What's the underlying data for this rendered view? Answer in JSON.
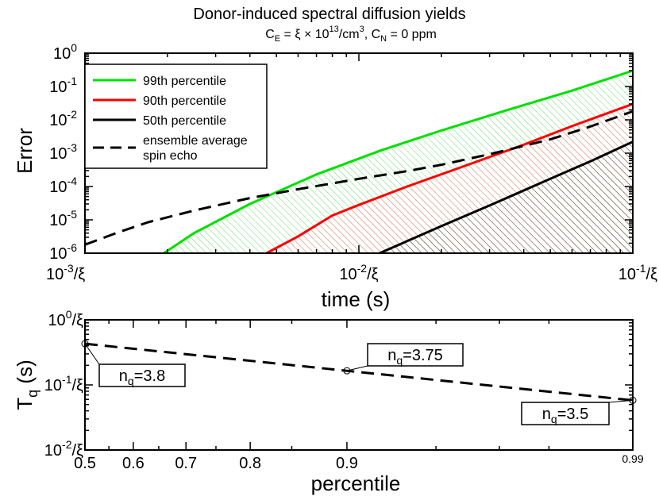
{
  "colors": {
    "p99": "#00e000",
    "p90": "#ff0000",
    "p50": "#000000",
    "ensemble": "#000000",
    "hatch_green": "#66dd66",
    "hatch_red": "#ff7777",
    "hatch_black": "#555555"
  },
  "title": {
    "main": "Donor-induced spectral diffusion yields",
    "sub_ce": "C",
    "sub_e": "E",
    "sub_eq": " = ξ × 10",
    "sub_exp": "13",
    "sub_unit": "/cm",
    "sub_unit_exp": "3",
    "sub_cn": ", C",
    "sub_n": "N",
    "sub_cn_val": " = 0 ppm"
  },
  "chart_data": [
    {
      "id": "error-vs-time",
      "type": "line",
      "title": "Donor-induced spectral diffusion yields",
      "xlabel": "time (s)",
      "ylabel": "Error",
      "xscale": "log",
      "yscale": "log",
      "xlim": [
        0.001,
        0.1
      ],
      "ylim": [
        1e-06,
        1
      ],
      "xticks": [
        {
          "value": 0.001,
          "base": "10",
          "exp": "-3",
          "suffix": "/ξ"
        },
        {
          "value": 0.01,
          "base": "10",
          "exp": "-2",
          "suffix": "/ξ"
        },
        {
          "value": 0.1,
          "base": "10",
          "exp": "-1",
          "suffix": "/ξ"
        }
      ],
      "yticks": [
        {
          "value": 1,
          "base": "10",
          "exp": "0"
        },
        {
          "value": 0.1,
          "base": "10",
          "exp": "-1"
        },
        {
          "value": 0.01,
          "base": "10",
          "exp": "-2"
        },
        {
          "value": 0.001,
          "base": "10",
          "exp": "-3"
        },
        {
          "value": 0.0001,
          "base": "10",
          "exp": "-4"
        },
        {
          "value": 1e-05,
          "base": "10",
          "exp": "-5"
        },
        {
          "value": 1e-06,
          "base": "10",
          "exp": "-6"
        }
      ],
      "legend_position": "top-left",
      "series": [
        {
          "key": "p99",
          "name": "99th percentile",
          "style": "solid",
          "hatch": "hatch_green",
          "x": [
            0.00194,
            0.0025,
            0.004,
            0.007,
            0.012,
            0.02,
            0.035,
            0.06,
            0.1
          ],
          "y": [
            1e-06,
            4e-06,
            3e-05,
            0.00023,
            0.0012,
            0.0048,
            0.02,
            0.075,
            0.3
          ]
        },
        {
          "key": "p90",
          "name": "90th percentile",
          "style": "solid",
          "hatch": "hatch_red",
          "x": [
            0.0046,
            0.006,
            0.008,
            0.01,
            0.015,
            0.025,
            0.04,
            0.06,
            0.1
          ],
          "y": [
            1e-06,
            3.2e-06,
            1.35e-05,
            2.8e-05,
            0.0001,
            0.00045,
            0.0018,
            0.0065,
            0.03
          ]
        },
        {
          "key": "p50",
          "name": "50th percentile",
          "style": "solid",
          "hatch": "hatch_black",
          "x": [
            0.0119,
            0.015,
            0.02,
            0.03,
            0.05,
            0.07,
            0.1
          ],
          "y": [
            1e-06,
            2.3e-06,
            6.5e-06,
            2.7e-05,
            0.00017,
            0.00057,
            0.0022
          ]
        },
        {
          "key": "ensemble",
          "name": "ensemble average",
          "name2": "spin echo",
          "style": "dashed",
          "x": [
            0.001,
            0.0013,
            0.0017,
            0.0025,
            0.004,
            0.006,
            0.01,
            0.015,
            0.02,
            0.03,
            0.05,
            0.07,
            0.1
          ],
          "y": [
            1.8e-06,
            4e-06,
            8.5e-06,
            1.9e-05,
            4.5e-05,
            8.3e-05,
            0.00017,
            0.00029,
            0.00045,
            0.00093,
            0.0026,
            0.0063,
            0.018
          ]
        }
      ]
    },
    {
      "id": "tq-vs-percentile",
      "type": "line",
      "xlabel": "percentile",
      "ylabel": "T",
      "ylabel_sub": "q",
      "ylabel_unit": " (s)",
      "xscale": "logit",
      "yscale": "log",
      "xlim": [
        0.5,
        0.99
      ],
      "ylim": [
        0.01,
        1
      ],
      "xticks": [
        "0.5",
        "0.6",
        "0.7",
        "0.8",
        "0.9",
        "0.99"
      ],
      "yticks": [
        {
          "value": 1,
          "base": "10",
          "exp": "0",
          "suffix": "/ξ"
        },
        {
          "value": 0.1,
          "base": "10",
          "exp": "-1",
          "suffix": "/ξ"
        },
        {
          "value": 0.01,
          "base": "10",
          "exp": "-2",
          "suffix": "/ξ"
        }
      ],
      "series": [
        {
          "name": "T_q",
          "style": "dashed",
          "x": [
            0.5,
            0.9,
            0.99
          ],
          "y": [
            0.43,
            0.165,
            0.058
          ]
        }
      ],
      "annotations": [
        {
          "x": 0.5,
          "label": "n",
          "sub": "q",
          "value": "=3.8"
        },
        {
          "x": 0.9,
          "label": "n",
          "sub": "q",
          "value": "=3.75"
        },
        {
          "x": 0.99,
          "label": "n",
          "sub": "q",
          "value": "=3.5"
        }
      ]
    }
  ]
}
